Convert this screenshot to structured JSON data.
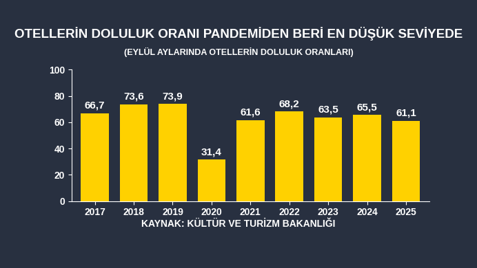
{
  "chart_data": {
    "type": "bar",
    "title": "OTELLERİN DOLULUK ORANI PANDEMİDEN BERİ EN DÜŞÜK SEVİYEDE",
    "subtitle": "(EYLÜL AYLARINDA OTELLERİN DOLULUK ORANLARI)",
    "source": "KAYNAK: KÜLTÜR VE TURİZM BAKANLIĞI",
    "categories": [
      "2017",
      "2018",
      "2019",
      "2020",
      "2021",
      "2022",
      "2023",
      "2024",
      "2025"
    ],
    "values": [
      66.7,
      73.6,
      73.9,
      31.4,
      61.6,
      68.2,
      63.5,
      65.5,
      61.1
    ],
    "value_labels": [
      "66,7",
      "73,6",
      "73,9",
      "31,4",
      "61,6",
      "68,2",
      "63,5",
      "65,5",
      "61,1"
    ],
    "data_labels": true,
    "color": "#ffd100",
    "ylim": [
      0,
      100
    ],
    "yticks": [
      0,
      20,
      40,
      60,
      80,
      100
    ],
    "grid": false
  }
}
